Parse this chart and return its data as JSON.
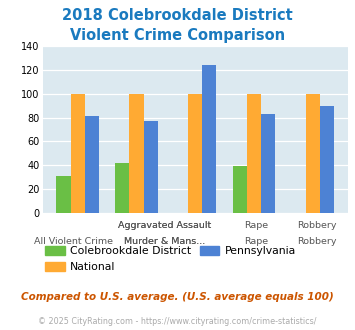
{
  "title_line1": "2018 Colebrookdale District",
  "title_line2": "Violent Crime Comparison",
  "title_color": "#1a7abf",
  "groups": [
    "All Violent Crime",
    "Aggravated Assault",
    "Murder & Mans...",
    "Rape",
    "Robbery"
  ],
  "colebrookdale": [
    31,
    42,
    0,
    39,
    0
  ],
  "national": [
    100,
    100,
    100,
    100,
    100
  ],
  "pennsylvania": [
    81,
    77,
    124,
    83,
    90
  ],
  "color_colebrookdale": "#6abf45",
  "color_national": "#ffaa33",
  "color_pennsylvania": "#4d82d4",
  "bg_color": "#dce9f0",
  "ylim": [
    0,
    140
  ],
  "yticks": [
    0,
    20,
    40,
    60,
    80,
    100,
    120,
    140
  ],
  "legend_labels": [
    "Colebrookdale District",
    "National",
    "Pennsylvania"
  ],
  "top_xlabels": [
    "",
    "Aggravated Assault",
    "Murder & Mans...",
    "Rape",
    "Robbery"
  ],
  "bottom_xlabels": [
    "All Violent Crime",
    "",
    "Murder & Mans...",
    "",
    ""
  ],
  "footnote1": "Compared to U.S. average. (U.S. average equals 100)",
  "footnote2": "© 2025 CityRating.com - https://www.cityrating.com/crime-statistics/",
  "footnote1_color": "#cc5500",
  "footnote2_color": "#aaaaaa"
}
